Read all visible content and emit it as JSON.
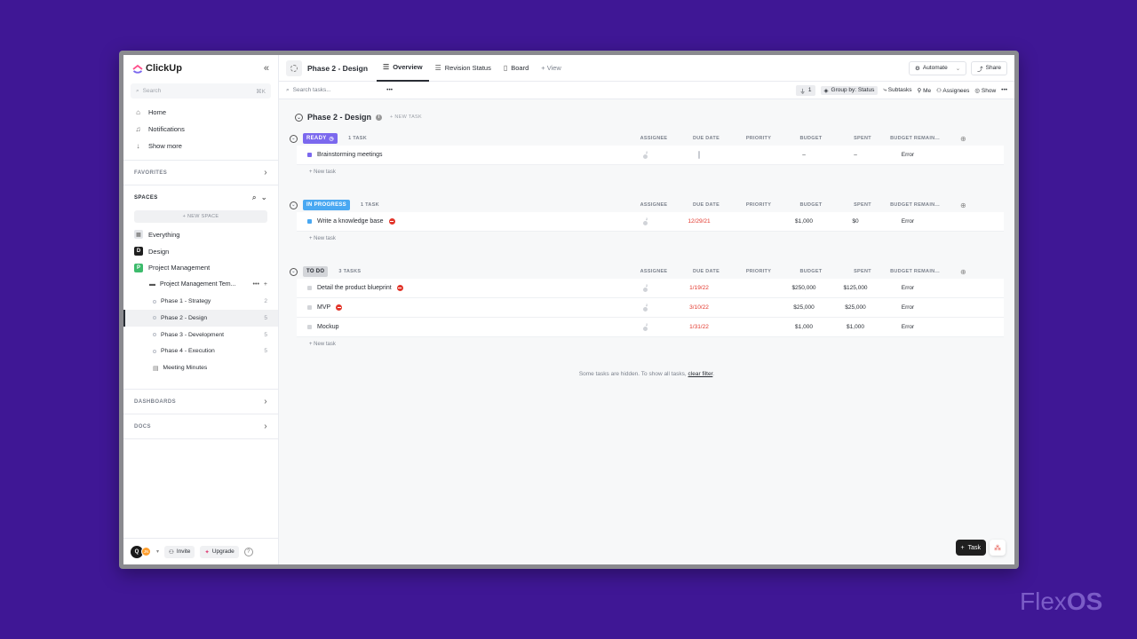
{
  "sidebar": {
    "brand": "ClickUp",
    "search_placeholder": "Search",
    "search_shortcut": "⌘K",
    "nav": [
      {
        "label": "Home"
      },
      {
        "label": "Notifications"
      },
      {
        "label": "Show more"
      }
    ],
    "favorites": "FAVORITES",
    "spaces": "SPACES",
    "new_space": "+ NEW SPACE",
    "space_items": [
      {
        "label": "Everything"
      },
      {
        "label": "Design",
        "badge": "D"
      },
      {
        "label": "Project Management",
        "badge": "P"
      }
    ],
    "folder": "Project Management Tem...",
    "lists": [
      {
        "label": "Phase 1 - Strategy",
        "count": "2"
      },
      {
        "label": "Phase 2 - Design",
        "count": "5"
      },
      {
        "label": "Phase 3 - Development",
        "count": "5"
      },
      {
        "label": "Phase 4 - Execution",
        "count": "5"
      }
    ],
    "doc": "Meeting Minutes",
    "dashboards": "DASHBOARDS",
    "docs": "DOCS",
    "avatar": "Q",
    "avatar2": "JN",
    "invite": "Invite",
    "upgrade": "Upgrade"
  },
  "topbar": {
    "title": "Phase 2 - Design",
    "tabs": [
      {
        "label": "Overview"
      },
      {
        "label": "Revision Status"
      },
      {
        "label": "Board"
      },
      {
        "label": "+ View"
      }
    ],
    "automate": "Automate",
    "share": "Share"
  },
  "toolbar": {
    "search_placeholder": "Search tasks...",
    "filter_count": "1",
    "group_by": "Group by: Status",
    "subtasks": "Subtasks",
    "me": "Me",
    "assignees": "Assignees",
    "show": "Show"
  },
  "list": {
    "title": "Phase 2 - Design",
    "new_task_btn": "+ NEW TASK",
    "columns": [
      "ASSIGNEE",
      "DUE DATE",
      "PRIORITY",
      "BUDGET",
      "SPENT",
      "BUDGET REMAIN..."
    ],
    "new_task": "+ New task",
    "groups": [
      {
        "status": "READY",
        "color": "#7b68ee",
        "count": "1 TASK",
        "tasks": [
          {
            "name": "Brainstorming meetings",
            "due": "",
            "budget": "–",
            "spent": "–",
            "remain": "Error",
            "flag": "#5bc8f5",
            "blocked": false,
            "sq": "#7b68ee"
          }
        ]
      },
      {
        "status": "IN PROGRESS",
        "color": "#49a8f2",
        "count": "1 TASK",
        "tasks": [
          {
            "name": "Write a knowledge base",
            "due": "12/29/21",
            "budget": "$1,000",
            "spent": "$0",
            "remain": "Error",
            "flag": "#5bc8f5",
            "blocked": true,
            "sq": "#49a8f2"
          }
        ]
      },
      {
        "status": "TO DO",
        "color": "#d3d5d9",
        "count": "3 TASKS",
        "tasks": [
          {
            "name": "Detail the product blueprint",
            "due": "1/19/22",
            "budget": "$250,000",
            "spent": "$125,000",
            "remain": "Error",
            "flag": "#ffcc00",
            "blocked": true,
            "sq": "#d3d5d9"
          },
          {
            "name": "MVP",
            "due": "3/10/22",
            "budget": "$25,000",
            "spent": "$25,000",
            "remain": "Error",
            "flag": "#5bc8f5",
            "blocked": true,
            "sq": "#d3d5d9"
          },
          {
            "name": "Mockup",
            "due": "1/31/22",
            "budget": "$1,000",
            "spent": "$1,000",
            "remain": "Error",
            "flag": "#5bc8f5",
            "blocked": false,
            "sq": "#d3d5d9"
          }
        ]
      }
    ],
    "hidden_note": "Some tasks are hidden. To show all tasks,",
    "clear_filter": "clear filter",
    "fab": "Task"
  },
  "watermark": {
    "a": "Flex",
    "b": "OS"
  }
}
